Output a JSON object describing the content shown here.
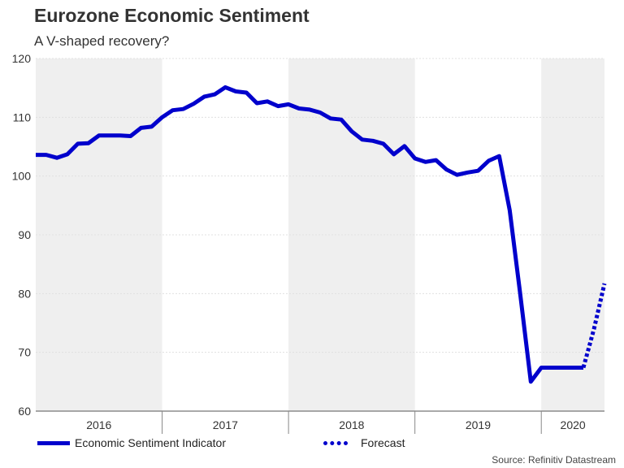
{
  "chart_data": {
    "type": "line",
    "title": "Eurozone Economic Sentiment",
    "subtitle": "A V-shaped recovery?",
    "source": "Source: Refinitiv Datastream",
    "ylim": [
      60,
      120
    ],
    "yticks": [
      60,
      70,
      80,
      90,
      100,
      110,
      120
    ],
    "x_range": [
      2016.0,
      2020.5
    ],
    "year_labels": [
      "2016",
      "2017",
      "2018",
      "2019",
      "2020"
    ],
    "shaded_years": [
      2016,
      2018,
      2020
    ],
    "legend": [
      "Economic Sentiment Indicator",
      "Forecast"
    ],
    "colors": {
      "series": "#0000cc",
      "band": "#efefef",
      "grid": "#e0e0e0"
    },
    "series": [
      {
        "name": "Economic Sentiment Indicator",
        "style": "solid",
        "x": [
          2016.0,
          2016.083,
          2016.167,
          2016.25,
          2016.333,
          2016.417,
          2016.5,
          2016.583,
          2016.667,
          2016.75,
          2016.833,
          2016.917,
          2017.0,
          2017.083,
          2017.167,
          2017.25,
          2017.333,
          2017.417,
          2017.5,
          2017.583,
          2017.667,
          2017.75,
          2017.833,
          2017.917,
          2018.0,
          2018.083,
          2018.167,
          2018.25,
          2018.333,
          2018.417,
          2018.5,
          2018.583,
          2018.667,
          2018.75,
          2018.833,
          2018.917,
          2019.0,
          2019.083,
          2019.167,
          2019.25,
          2019.333,
          2019.417,
          2019.5,
          2019.583,
          2019.667,
          2019.75,
          2019.833,
          2019.917,
          2020.0,
          2020.083,
          2020.167,
          2020.25,
          2020.333
        ],
        "values": [
          103.6,
          103.6,
          103.1,
          103.7,
          105.5,
          105.6,
          106.9,
          106.9,
          106.9,
          106.8,
          108.2,
          108.4,
          110.0,
          111.2,
          111.4,
          112.3,
          113.5,
          113.9,
          115.1,
          114.4,
          114.2,
          112.4,
          112.7,
          111.9,
          112.2,
          111.5,
          111.3,
          110.8,
          109.8,
          109.6,
          107.6,
          106.2,
          106.0,
          105.5,
          103.7,
          105.1,
          103.0,
          102.4,
          102.7,
          101.1,
          100.2,
          100.6,
          100.9,
          102.6,
          103.4,
          94.2,
          80.0,
          65.0,
          67.4,
          67.4,
          67.4,
          67.4,
          67.4
        ]
      },
      {
        "name": "Forecast",
        "style": "dotted",
        "x": [
          2020.333,
          2020.417,
          2020.5
        ],
        "values": [
          67.4,
          74.0,
          81.7
        ]
      }
    ]
  }
}
